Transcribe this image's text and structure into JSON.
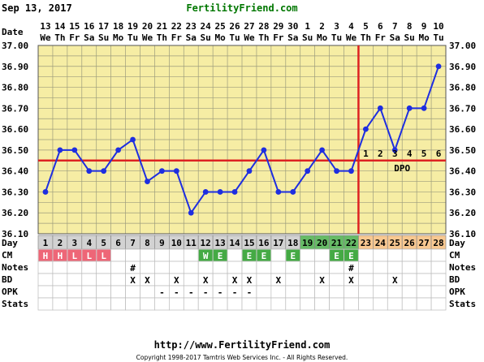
{
  "header": {
    "date": "Sep 13, 2017",
    "site": "FertilityFriend.com"
  },
  "footer": {
    "url": "http://www.FertilityFriend.com",
    "copyright": "Copyright 1998-2017 Tamtris Web Services Inc. - All Rights Reserved."
  },
  "chart_data": {
    "type": "line",
    "title": "",
    "row_labels": {
      "date": "Date",
      "day": "Day",
      "cm": "CM",
      "notes": "Notes",
      "bd": "BD",
      "opk": "OPK",
      "stats": "Stats"
    },
    "dates": [
      "13",
      "14",
      "15",
      "16",
      "17",
      "18",
      "19",
      "20",
      "21",
      "22",
      "23",
      "24",
      "25",
      "26",
      "27",
      "28",
      "29",
      "30",
      "1",
      "2",
      "3",
      "4",
      "5",
      "6",
      "7",
      "8",
      "9",
      "10"
    ],
    "weekdays": [
      "We",
      "Th",
      "Fr",
      "Sa",
      "Su",
      "Mo",
      "Tu",
      "We",
      "Th",
      "Fr",
      "Sa",
      "Su",
      "Mo",
      "Tu",
      "We",
      "Th",
      "Fr",
      "Sa",
      "Su",
      "Mo",
      "Tu",
      "We",
      "Th",
      "Fr",
      "Sa",
      "Su",
      "Mo",
      "Tu"
    ],
    "cycle_days": [
      1,
      2,
      3,
      4,
      5,
      6,
      7,
      8,
      9,
      10,
      11,
      12,
      13,
      14,
      15,
      16,
      17,
      18,
      19,
      20,
      21,
      22,
      23,
      24,
      25,
      26,
      27,
      28
    ],
    "temperatures": [
      36.3,
      36.5,
      36.5,
      36.4,
      36.4,
      36.5,
      36.55,
      36.35,
      36.4,
      36.4,
      36.2,
      36.3,
      36.3,
      36.3,
      36.4,
      36.5,
      36.3,
      36.3,
      36.4,
      36.5,
      36.4,
      36.4,
      36.6,
      36.7,
      36.5,
      36.7,
      36.7,
      36.9
    ],
    "y_ticks": [
      "36.10",
      "36.20",
      "36.30",
      "36.40",
      "36.50",
      "36.60",
      "36.70",
      "36.80",
      "36.90",
      "37.00"
    ],
    "ylim": [
      36.1,
      37.0
    ],
    "coverline": 36.45,
    "ovulation_day": 22,
    "dpo_labels": [
      "1",
      "2",
      "3",
      "4",
      "5",
      "6"
    ],
    "dpo_text": "DPO",
    "menstruation_days": [
      1,
      2,
      3,
      4,
      5
    ],
    "fertile_days": [
      19,
      20,
      21,
      22
    ],
    "luteal_days": [
      23,
      24,
      25,
      26,
      27,
      28
    ],
    "cm": [
      "H",
      "H",
      "L",
      "L",
      "L",
      "",
      "",
      "",
      "",
      "",
      "",
      "W",
      "E",
      "",
      "E",
      "E",
      "",
      "E",
      "",
      "",
      "E",
      "E",
      "",
      "",
      "",
      "",
      "",
      ""
    ],
    "cm_colors": {
      "H": "#ee6677",
      "L": "#ee6677",
      "W": "#44aa44",
      "E": "#44aa44"
    },
    "notes": [
      "",
      "",
      "",
      "",
      "",
      "",
      "#",
      "",
      "",
      "",
      "",
      "",
      "",
      "",
      "",
      "",
      "",
      "",
      "",
      "",
      "",
      "#",
      "",
      "",
      "",
      "",
      "",
      ""
    ],
    "bd": [
      "",
      "",
      "",
      "",
      "",
      "",
      "X",
      "X",
      "",
      "X",
      "",
      "X",
      "",
      "X",
      "X",
      "",
      "X",
      "",
      "",
      "X",
      "",
      "X",
      "",
      "",
      "X",
      "",
      "",
      ""
    ],
    "opk": [
      "",
      "",
      "",
      "",
      "",
      "",
      "",
      "",
      "-",
      "-",
      "-",
      "-",
      "-",
      "-",
      "-",
      "",
      "",
      "",
      "",
      "",
      "",
      "",
      "",
      "",
      "",
      "",
      "",
      ""
    ],
    "colors": {
      "line": "#1e2ee0",
      "coverline": "#dd2222",
      "ovulation": "#dd2222",
      "plot_bg": "#f6eda4",
      "grid": "#9c9c7c",
      "header_green": "#007700",
      "menses_cell": "#f7b6b8",
      "fertile_cell": "#66bb66",
      "luteal_cell": "#f8c891",
      "normal_cell": "#d2d2d2"
    }
  }
}
